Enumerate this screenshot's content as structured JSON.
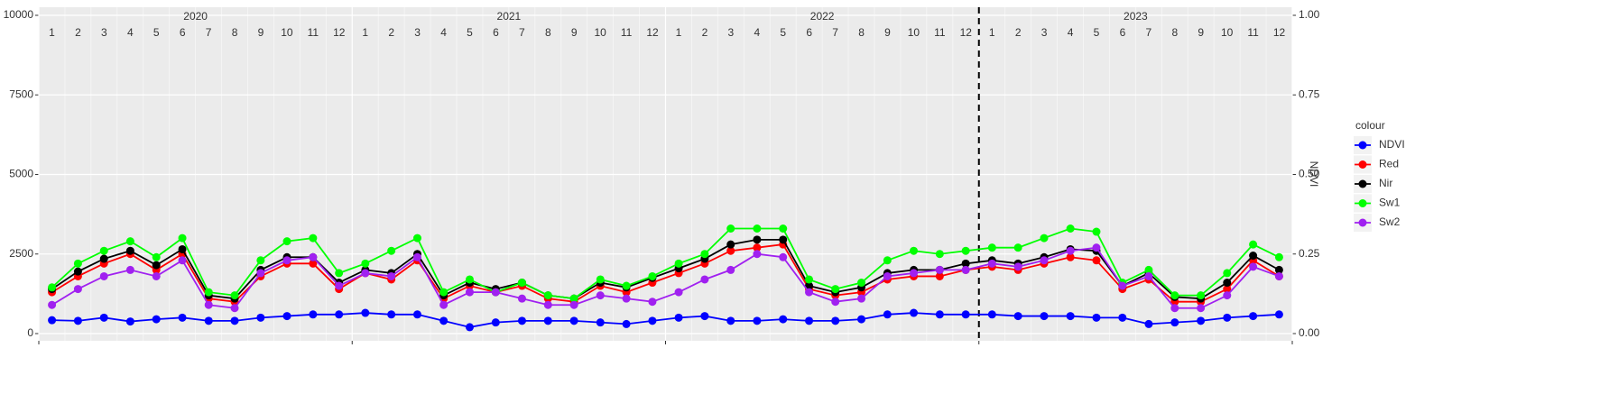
{
  "chart_data": {
    "type": "line",
    "years": [
      2020,
      2021,
      2022,
      2023
    ],
    "months": [
      1,
      2,
      3,
      4,
      5,
      6,
      7,
      8,
      9,
      10,
      11,
      12
    ],
    "y2_label": "NDVI",
    "legend_title": "colour",
    "legend_position": "right",
    "grid": true,
    "vline": 2023,
    "xlim": [
      2020,
      2024
    ],
    "xticks": [
      2020,
      2021,
      2022,
      2023,
      2024
    ],
    "ylim": [
      -227,
      10255
    ],
    "yticks": [
      0,
      2500,
      5000,
      7500,
      10000
    ],
    "y2lim": [
      -0.0227,
      1.0255
    ],
    "y2ticks": [
      {
        "value": 0,
        "label": "0.00"
      },
      {
        "value": 0.25,
        "label": "0.25"
      },
      {
        "value": 0.5,
        "label": "0.50"
      },
      {
        "value": 0.75,
        "label": "0.75"
      },
      {
        "value": 1,
        "label": "1.00"
      }
    ],
    "x": [
      2020.042,
      2020.125,
      2020.208,
      2020.292,
      2020.375,
      2020.458,
      2020.542,
      2020.625,
      2020.708,
      2020.792,
      2020.875,
      2020.958,
      2021.042,
      2021.125,
      2021.208,
      2021.292,
      2021.375,
      2021.458,
      2021.542,
      2021.625,
      2021.708,
      2021.792,
      2021.875,
      2021.958,
      2022.042,
      2022.125,
      2022.208,
      2022.292,
      2022.375,
      2022.458,
      2022.542,
      2022.625,
      2022.708,
      2022.792,
      2022.875,
      2022.958,
      2023.042,
      2023.125,
      2023.208,
      2023.292,
      2023.375,
      2023.458,
      2023.542,
      2023.625,
      2023.708,
      2023.792,
      2023.875,
      2023.958
    ],
    "series": [
      {
        "name": "NDVI",
        "color": "#0000ff",
        "axis": "y2",
        "values": [
          0.042,
          0.04,
          0.05,
          0.038,
          0.045,
          0.05,
          0.04,
          0.04,
          0.05,
          0.055,
          0.06,
          0.06,
          0.065,
          0.06,
          0.06,
          0.04,
          0.02,
          0.035,
          0.04,
          0.04,
          0.04,
          0.035,
          0.03,
          0.04,
          0.05,
          0.055,
          0.04,
          0.04,
          0.045,
          0.04,
          0.04,
          0.045,
          0.06,
          0.065,
          0.06,
          0.06,
          0.06,
          0.055,
          0.055,
          0.055,
          0.05,
          0.05,
          0.03,
          0.035,
          0.04,
          0.05,
          0.055,
          0.06
        ]
      },
      {
        "name": "Red",
        "color": "#ff0000",
        "values": [
          1300,
          1800,
          2200,
          2500,
          2000,
          2500,
          1100,
          1000,
          1800,
          2200,
          2200,
          1400,
          1900,
          1700,
          2300,
          1100,
          1500,
          1300,
          1500,
          1100,
          1000,
          1500,
          1300,
          1600,
          1900,
          2200,
          2600,
          2700,
          2800,
          1400,
          1200,
          1300,
          1700,
          1800,
          1800,
          2000,
          2100,
          2000,
          2200,
          2400,
          2300,
          1400,
          1700,
          1000,
          1000,
          1400,
          2300,
          1800
        ]
      },
      {
        "name": "Nir",
        "color": "#000000",
        "values": [
          1400,
          1950,
          2350,
          2600,
          2150,
          2650,
          1200,
          1100,
          2000,
          2400,
          2400,
          1600,
          2000,
          1900,
          2500,
          1200,
          1600,
          1400,
          1600,
          1200,
          1100,
          1600,
          1450,
          1750,
          2050,
          2350,
          2800,
          2950,
          2950,
          1500,
          1300,
          1450,
          1900,
          2000,
          2000,
          2200,
          2300,
          2200,
          2400,
          2650,
          2600,
          1500,
          1900,
          1150,
          1100,
          1600,
          2450,
          2000
        ]
      },
      {
        "name": "Sw1",
        "color": "#00ff00",
        "values": [
          1450,
          2200,
          2600,
          2900,
          2400,
          3000,
          1300,
          1200,
          2300,
          2900,
          3000,
          1900,
          2200,
          2600,
          3000,
          1300,
          1700,
          1300,
          1600,
          1200,
          1100,
          1700,
          1500,
          1800,
          2200,
          2500,
          3300,
          3300,
          3300,
          1700,
          1400,
          1600,
          2300,
          2600,
          2500,
          2600,
          2700,
          2700,
          3000,
          3300,
          3200,
          1600,
          2000,
          1200,
          1200,
          1900,
          2800,
          2400
        ]
      },
      {
        "name": "Sw2",
        "color": "#a020f0",
        "values": [
          900,
          1400,
          1800,
          2000,
          1800,
          2300,
          900,
          800,
          1900,
          2300,
          2400,
          1500,
          1900,
          1800,
          2400,
          900,
          1300,
          1300,
          1100,
          900,
          900,
          1200,
          1100,
          1000,
          1300,
          1700,
          2000,
          2500,
          2400,
          1300,
          1000,
          1100,
          1800,
          1900,
          2000,
          2000,
          2200,
          2100,
          2300,
          2600,
          2700,
          1500,
          1800,
          800,
          800,
          1200,
          2100,
          1800
        ]
      }
    ]
  }
}
